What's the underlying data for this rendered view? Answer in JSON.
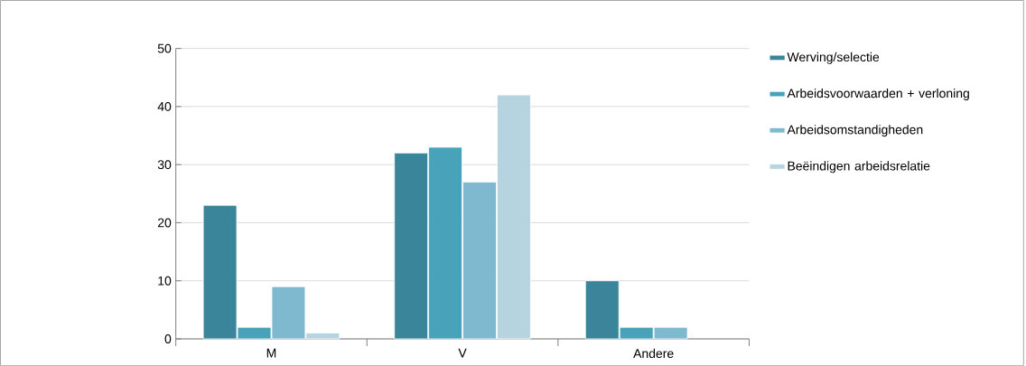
{
  "chart_data": {
    "type": "bar",
    "categories": [
      "M",
      "V",
      "Andere"
    ],
    "series": [
      {
        "name": "Werving/selectie",
        "color": "#3a8599",
        "values": [
          23,
          32,
          10
        ]
      },
      {
        "name": "Arbeidsvoorwaarden + verloning",
        "color": "#48a2ba",
        "values": [
          2,
          33,
          2
        ]
      },
      {
        "name": "Arbeidsomstandigheden",
        "color": "#7fb9cf",
        "values": [
          9,
          27,
          2
        ]
      },
      {
        "name": "Beëindigen arbeidsrelatie",
        "color": "#b6d4df",
        "values": [
          1,
          42,
          null
        ]
      }
    ],
    "ylim": [
      0,
      50
    ],
    "yticks": [
      0,
      10,
      20,
      30,
      40,
      50
    ],
    "grid": "y",
    "legend": "right"
  }
}
